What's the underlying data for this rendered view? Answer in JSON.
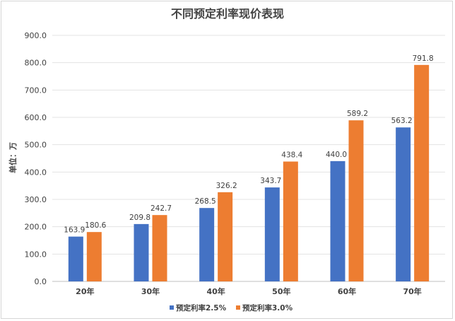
{
  "chart_data": {
    "type": "bar",
    "title": "不同预定利率现价表现",
    "xlabel": "",
    "ylabel": "单位：万",
    "ylim": [
      0,
      900
    ],
    "yticks": [
      "0.0",
      "100.0",
      "200.0",
      "300.0",
      "400.0",
      "500.0",
      "600.0",
      "700.0",
      "800.0",
      "900.0"
    ],
    "grid": true,
    "legend_position": "bottom",
    "categories": [
      "20年",
      "30年",
      "40年",
      "50年",
      "60年",
      "70年"
    ],
    "series": [
      {
        "name": "预定利率2.5%",
        "color": "#4472c4",
        "values": [
          163.9,
          209.8,
          268.5,
          343.7,
          440.0,
          563.2
        ],
        "labels": [
          "163.9",
          "209.8",
          "268.5",
          "343.7",
          "440.0",
          "563.2"
        ]
      },
      {
        "name": "预定利率3.0%",
        "color": "#ed7d31",
        "values": [
          180.6,
          242.7,
          326.2,
          438.4,
          589.2,
          791.8
        ],
        "labels": [
          "180.6",
          "242.7",
          "326.2",
          "438.4",
          "589.2",
          "791.8"
        ]
      }
    ]
  }
}
